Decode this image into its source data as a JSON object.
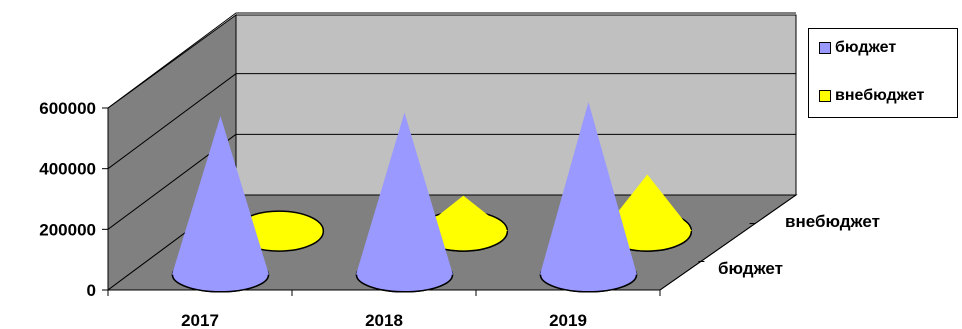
{
  "chart_data": {
    "type": "bar",
    "subtype": "3d-cone",
    "categories": [
      "2017",
      "2018",
      "2019"
    ],
    "series": [
      {
        "name": "бюджет",
        "values": [
          450000,
          460000,
          490000
        ],
        "color": "#9999ff"
      },
      {
        "name": "внебюджет",
        "values": [
          30000,
          100000,
          160000
        ],
        "color": "#ffff00"
      }
    ],
    "depth_labels": [
      "внебюджет",
      "бюджет"
    ],
    "y_ticks": [
      "0",
      "200000",
      "400000",
      "600000"
    ],
    "ylim": [
      0,
      600000
    ],
    "grid": true,
    "legend_position": "right",
    "title": "",
    "xlabel": "",
    "ylabel": ""
  }
}
